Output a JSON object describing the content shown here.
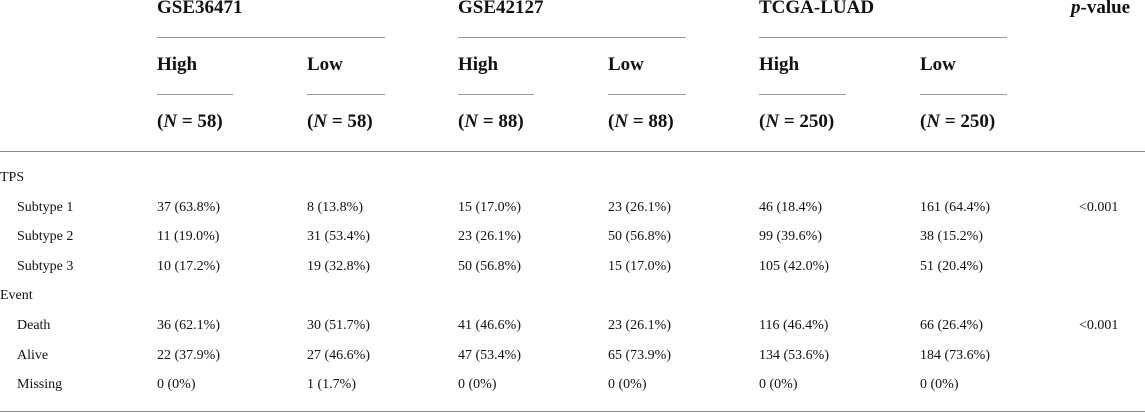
{
  "table": {
    "datasets": [
      "GSE36471",
      "GSE42127",
      "TCGA-LUAD"
    ],
    "pvalue_header_italic": "p",
    "pvalue_header_rest": "-value",
    "groups": [
      "High",
      "Low",
      "High",
      "Low",
      "High",
      "Low"
    ],
    "n_values": [
      "58",
      "58",
      "88",
      "88",
      "250",
      "250"
    ],
    "n_symbol": "N",
    "sections": [
      {
        "label": "TPS",
        "rows": [
          {
            "label": "Subtype 1",
            "cells": [
              "37 (63.8%)",
              "8 (13.8%)",
              "15 (17.0%)",
              "23 (26.1%)",
              "46 (18.4%)",
              "161 (64.4%)"
            ],
            "p": "<0.001"
          },
          {
            "label": "Subtype 2",
            "cells": [
              "11 (19.0%)",
              "31 (53.4%)",
              "23 (26.1%)",
              "50 (56.8%)",
              "99 (39.6%)",
              "38 (15.2%)"
            ],
            "p": ""
          },
          {
            "label": "Subtype 3",
            "cells": [
              "10 (17.2%)",
              "19 (32.8%)",
              "50 (56.8%)",
              "15 (17.0%)",
              "105 (42.0%)",
              "51 (20.4%)"
            ],
            "p": ""
          }
        ]
      },
      {
        "label": "Event",
        "rows": [
          {
            "label": "Death",
            "cells": [
              "36 (62.1%)",
              "30 (51.7%)",
              "41 (46.6%)",
              "23 (26.1%)",
              "116 (46.4%)",
              "66 (26.4%)"
            ],
            "p": "<0.001"
          },
          {
            "label": "Alive",
            "cells": [
              "22 (37.9%)",
              "27 (46.6%)",
              "47 (53.4%)",
              "65 (73.9%)",
              "134 (53.6%)",
              "184 (73.6%)"
            ],
            "p": ""
          },
          {
            "label": "Missing",
            "cells": [
              "0 (0%)",
              "1 (1.7%)",
              "0 (0%)",
              "0 (0%)",
              "0 (0%)",
              "0 (0%)"
            ],
            "p": ""
          }
        ]
      }
    ]
  }
}
